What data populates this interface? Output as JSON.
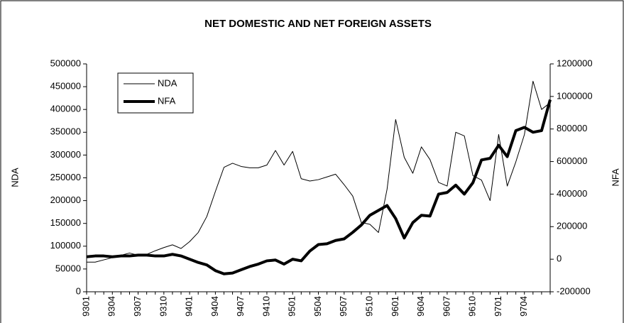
{
  "chart_data": {
    "type": "line",
    "title": "NET DOMESTIC AND NET FOREIGN ASSETS",
    "y_label": "NDA",
    "y2_label": "NFA",
    "categories": [
      "9301",
      null,
      null,
      "9304",
      null,
      null,
      "9307",
      null,
      null,
      "9310",
      null,
      null,
      "9401",
      null,
      null,
      "9404",
      null,
      null,
      "9407",
      null,
      null,
      "9410",
      null,
      null,
      "9501",
      null,
      null,
      "9504",
      null,
      null,
      "9507",
      null,
      null,
      "9510",
      null,
      null,
      "9601",
      null,
      null,
      "9604",
      null,
      null,
      "9607",
      null,
      null,
      "9610",
      null,
      null,
      "9701",
      null,
      null,
      "9704",
      null,
      null,
      null
    ],
    "series": [
      {
        "name": "NDA",
        "color": "#000000",
        "width": 1,
        "axis": "y",
        "values": [
          65000,
          65000,
          70000,
          75000,
          80000,
          85000,
          80000,
          82000,
          90000,
          97000,
          103000,
          95000,
          110000,
          130000,
          165000,
          220000,
          273000,
          282000,
          275000,
          272000,
          272000,
          278000,
          310000,
          278000,
          308000,
          248000,
          243000,
          246000,
          252000,
          258000,
          235000,
          210000,
          152000,
          148000,
          130000,
          225000,
          378000,
          295000,
          260000,
          318000,
          290000,
          240000,
          232000,
          350000,
          342000,
          255000,
          245000,
          200000,
          345000,
          232000,
          285000,
          345000,
          462000,
          400000,
          415000
        ]
      },
      {
        "name": "NFA",
        "color": "#000000",
        "width": 4,
        "axis": "y2",
        "values": [
          15000,
          20000,
          20000,
          15000,
          20000,
          20000,
          25000,
          25000,
          20000,
          20000,
          30000,
          20000,
          0,
          -20000,
          -35000,
          -70000,
          -90000,
          -85000,
          -65000,
          -45000,
          -30000,
          -10000,
          -5000,
          -30000,
          0,
          -10000,
          50000,
          90000,
          95000,
          115000,
          125000,
          165000,
          210000,
          270000,
          300000,
          330000,
          250000,
          130000,
          225000,
          270000,
          265000,
          400000,
          410000,
          455000,
          400000,
          470000,
          610000,
          620000,
          700000,
          630000,
          790000,
          810000,
          780000,
          790000,
          980000
        ]
      }
    ],
    "ylim": [
      0,
      500000
    ],
    "yticks": [
      0,
      50000,
      100000,
      150000,
      200000,
      250000,
      300000,
      350000,
      400000,
      450000,
      500000
    ],
    "y2lim": [
      -200000,
      1200000
    ],
    "y2ticks": [
      -200000,
      0,
      200000,
      400000,
      600000,
      800000,
      1000000,
      1200000
    ],
    "grid": false,
    "legend": "upper left"
  }
}
